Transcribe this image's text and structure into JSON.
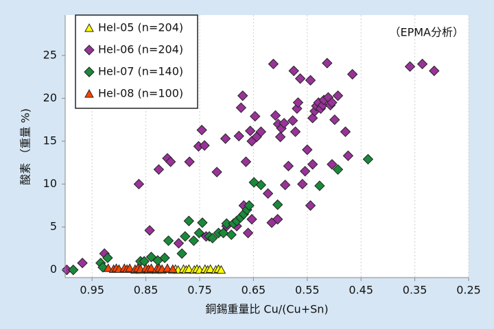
{
  "chart_data": {
    "type": "scatter",
    "annotation": "（EPMA分析）",
    "x_label": "銅錫重量比 Cu/(Cu+Sn)",
    "y_label": "酸素 （重量 %)",
    "xlim": [
      1.0,
      0.25
    ],
    "ylim": [
      -0.9,
      29.7
    ],
    "xticks": [
      0.95,
      0.85,
      0.75,
      0.65,
      0.55,
      0.45,
      0.35,
      0.25
    ],
    "yticks": [
      0,
      5,
      10,
      15,
      20,
      25
    ],
    "grid": "x",
    "series": [
      {
        "name": "Hel-05 (n=204)",
        "color": "#ffff00",
        "marker": "triangle",
        "x": [
          0.88,
          0.87,
          0.865,
          0.86,
          0.85,
          0.845,
          0.84,
          0.83,
          0.825,
          0.82,
          0.81,
          0.8,
          0.795,
          0.79,
          0.78,
          0.775,
          0.77,
          0.76,
          0.755,
          0.75,
          0.74,
          0.735,
          0.73,
          0.72,
          0.715,
          0.71
        ],
        "values": [
          0.1,
          0,
          0.1,
          0,
          0.1,
          0,
          0.1,
          0,
          0.1,
          0,
          0.1,
          0,
          0.1,
          0,
          0.1,
          0,
          0.1,
          0,
          0.1,
          0,
          0.1,
          0,
          0.1,
          0,
          0.1,
          0
        ]
      },
      {
        "name": "Hel-06 (n=204)",
        "color": "#993399",
        "marker": "diamond",
        "x": [
          0.997,
          0.968,
          0.927,
          0.863,
          0.843,
          0.826,
          0.81,
          0.804,
          0.769,
          0.752,
          0.746,
          0.741,
          0.718,
          0.702,
          0.677,
          0.673,
          0.67,
          0.664,
          0.656,
          0.653,
          0.647,
          0.644,
          0.636,
          0.623,
          0.613,
          0.609,
          0.604,
          0.6,
          0.598,
          0.593,
          0.605,
          0.585,
          0.575,
          0.577,
          0.572,
          0.569,
          0.567,
          0.563,
          0.559,
          0.554,
          0.55,
          0.544,
          0.544,
          0.54,
          0.536,
          0.533,
          0.529,
          0.525,
          0.521,
          0.519,
          0.513,
          0.511,
          0.507,
          0.504,
          0.499,
          0.493,
          0.504,
          0.479,
          0.474,
          0.466,
          0.359,
          0.336,
          0.314,
          0.668,
          0.66,
          0.653,
          0.681,
          0.738,
          0.789,
          0.7,
          0.616,
          0.591,
          0.54
        ],
        "values": [
          0,
          0.8,
          1.9,
          10,
          4.6,
          11.7,
          13,
          12.6,
          12.6,
          14.4,
          16.3,
          14.5,
          11.4,
          15.3,
          15.6,
          18.9,
          20.3,
          12.6,
          16.2,
          15,
          17.9,
          15.5,
          16.1,
          8.9,
          24,
          18,
          17,
          15.5,
          16.5,
          17.1,
          5.9,
          12.1,
          23.2,
          17.4,
          16.1,
          18.8,
          19.5,
          22.3,
          10,
          11.5,
          14,
          22.1,
          7.5,
          17.7,
          18.5,
          19.1,
          19.5,
          18.8,
          19.2,
          19.8,
          24.1,
          20.1,
          19.2,
          19.5,
          17.5,
          20.3,
          12.3,
          16.1,
          13.3,
          22.8,
          23.7,
          24,
          23.2,
          7.5,
          4.3,
          5.9,
          5.1,
          3.9,
          3.1,
          5.1,
          5.5,
          9.9,
          12.3
        ]
      },
      {
        "name": "Hel-07 (n=140)",
        "color": "#1a8a3a",
        "marker": "diamond",
        "x": [
          0.985,
          0.934,
          0.921,
          0.93,
          0.86,
          0.84,
          0.808,
          0.815,
          0.783,
          0.777,
          0.77,
          0.761,
          0.751,
          0.745,
          0.732,
          0.726,
          0.715,
          0.706,
          0.7,
          0.691,
          0.687,
          0.681,
          0.674,
          0.668,
          0.662,
          0.658,
          0.649,
          0.636,
          0.605,
          0.527,
          0.493,
          0.437,
          0.853,
          0.828
        ],
        "values": [
          0,
          0.8,
          1.4,
          0.3,
          1,
          1.5,
          3.4,
          1.4,
          1.9,
          3.9,
          5.7,
          3.4,
          4.3,
          5.5,
          3.9,
          3.7,
          4.3,
          4.3,
          5.4,
          4.1,
          5.4,
          5.7,
          6.1,
          6.5,
          7,
          7.5,
          10.2,
          9.9,
          7.6,
          9.8,
          11.7,
          12.9,
          1,
          1.1
        ]
      },
      {
        "name": "Hel-08 (n=100)",
        "color": "#ff4400",
        "marker": "triangle",
        "x": [
          0.92,
          0.91,
          0.905,
          0.9,
          0.89,
          0.885,
          0.88,
          0.87,
          0.865,
          0.86,
          0.85,
          0.845,
          0.84,
          0.83,
          0.825,
          0.82,
          0.81,
          0.8
        ],
        "values": [
          0.2,
          0.1,
          0.2,
          0.1,
          0.2,
          0.1,
          0.2,
          0.1,
          0.2,
          0.1,
          0.2,
          0.1,
          0.2,
          0.1,
          0.2,
          0.1,
          0.2,
          0.1
        ]
      }
    ]
  }
}
